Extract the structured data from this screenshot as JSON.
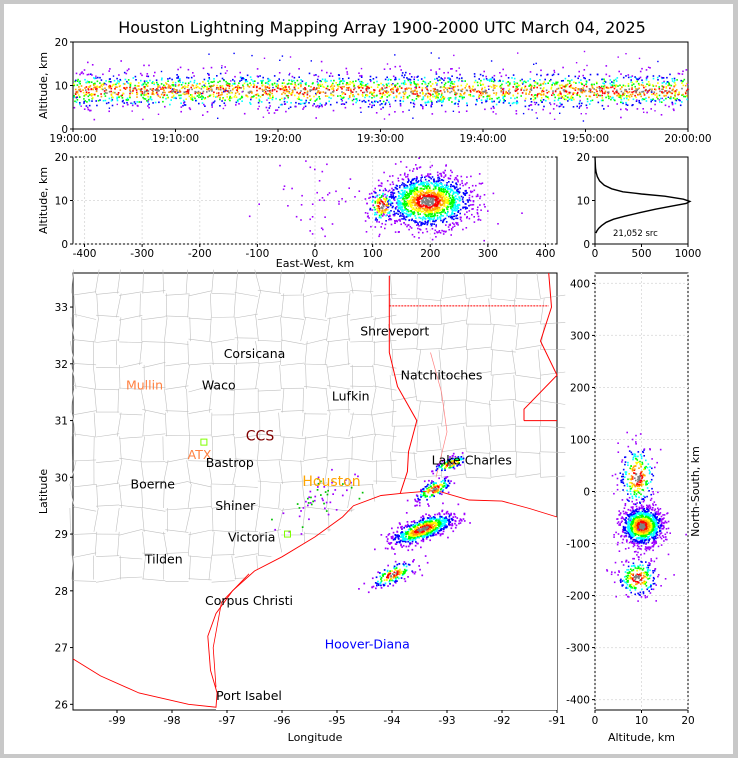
{
  "title": "Houston Lightning Mapping Array 1900-2000 UTC March 04, 2025",
  "colors": {
    "coast": "#ff0000",
    "county": "#c0c0c0",
    "state": "#ff0000",
    "grid": "#e0e0e0"
  },
  "chart_data": [
    {
      "type": "scatter",
      "name": "time-altitude",
      "ylabel": "Altitude, km",
      "xlim": [
        "19:00:00",
        "20:00:00"
      ],
      "xticks": [
        "19:00:00",
        "19:10:00",
        "19:20:00",
        "19:30:00",
        "19:40:00",
        "19:50:00",
        "20:00:00"
      ],
      "ylim": [
        0,
        20
      ],
      "yticks": [
        "0",
        "10",
        "20"
      ],
      "band_center_km": 9,
      "band_halfwidth_km": 2.5
    },
    {
      "type": "scatter",
      "name": "east-west-altitude",
      "xlabel": "East-West, km",
      "ylabel": "Altitude, km",
      "xlim": [
        -420,
        420
      ],
      "xticks": [
        "-400",
        "-300",
        "-200",
        "-100",
        "0",
        "100",
        "200",
        "300",
        "400"
      ],
      "ylim": [
        0,
        20
      ],
      "yticks": [
        "0",
        "10",
        "20"
      ],
      "clusters": [
        {
          "x": 195,
          "y": 10,
          "sx": 38,
          "sy": 3,
          "n": 1500
        },
        {
          "x": 115,
          "y": 9,
          "sx": 12,
          "sy": 2,
          "n": 150
        },
        {
          "x": 0,
          "y": 12,
          "sx": 45,
          "sy": 5,
          "n": 45
        }
      ]
    },
    {
      "type": "line",
      "name": "altitude-histogram",
      "source_count": "21,052 src",
      "xlim": [
        0,
        1000
      ],
      "xticks": [
        "0",
        "500",
        "1000"
      ],
      "ylim": [
        0,
        20
      ],
      "yticks": [
        "0",
        "10",
        "20"
      ],
      "x": [
        10,
        20,
        40,
        70,
        120,
        200,
        320,
        480,
        650,
        820,
        980,
        1020,
        950,
        750,
        500,
        300,
        180,
        100,
        50,
        25,
        12,
        5,
        3,
        0
      ],
      "y": [
        2.5,
        3,
        3.6,
        4.2,
        5,
        5.7,
        6.4,
        7.2,
        8.0,
        8.7,
        9.3,
        9.8,
        10.3,
        11,
        11.5,
        12,
        12.7,
        13.5,
        14.5,
        15.5,
        16.5,
        17.5,
        18.5,
        20
      ]
    },
    {
      "type": "scatter",
      "name": "plan-view",
      "xlabel": "Longitude",
      "ylabel": "Latitude",
      "xlim": [
        -99.8,
        -91
      ],
      "xticks": [
        "-99",
        "-98",
        "-97",
        "-96",
        "-95",
        "-94",
        "-93",
        "-92",
        "-91"
      ],
      "ylim": [
        25.9,
        33.6
      ],
      "yticks": [
        "26",
        "27",
        "28",
        "29",
        "30",
        "31",
        "32",
        "33"
      ],
      "stations": [
        {
          "label": "Mullin",
          "lon": -98.5,
          "lat": 31.55,
          "color": "#ff8040"
        },
        {
          "label": "Waco",
          "lon": -97.15,
          "lat": 31.55,
          "color": "#000000"
        },
        {
          "label": "Corsicana",
          "lon": -96.5,
          "lat": 32.1,
          "color": "#000000"
        },
        {
          "label": "Shreveport",
          "lon": -93.95,
          "lat": 32.5,
          "color": "#000000"
        },
        {
          "label": "Natchitoches",
          "lon": -93.1,
          "lat": 31.72,
          "color": "#000000"
        },
        {
          "label": "Lufkin",
          "lon": -94.75,
          "lat": 31.35,
          "color": "#000000"
        },
        {
          "label": "CCS",
          "lon": -96.4,
          "lat": 30.65,
          "color": "#800000"
        },
        {
          "label": "ATX",
          "lon": -97.5,
          "lat": 30.32,
          "color": "#ff8040"
        },
        {
          "label": "Bastrop",
          "lon": -96.95,
          "lat": 30.18,
          "color": "#000000"
        },
        {
          "label": "Lake Charles",
          "lon": -92.55,
          "lat": 30.23,
          "color": "#000000"
        },
        {
          "label": "Boerne",
          "lon": -98.35,
          "lat": 29.8,
          "color": "#000000"
        },
        {
          "label": "Houston",
          "lon": -95.1,
          "lat": 29.85,
          "color": "#ffa500"
        },
        {
          "label": "Shiner",
          "lon": -96.85,
          "lat": 29.42,
          "color": "#000000"
        },
        {
          "label": "Victoria",
          "lon": -96.55,
          "lat": 28.87,
          "color": "#000000"
        },
        {
          "label": "Tilden",
          "lon": -98.15,
          "lat": 28.48,
          "color": "#000000"
        },
        {
          "label": "Corpus Christi",
          "lon": -96.6,
          "lat": 27.75,
          "color": "#000000"
        },
        {
          "label": "Hoover-Diana",
          "lon": -94.45,
          "lat": 26.98,
          "color": "#0000ff"
        },
        {
          "label": "Port Isabel",
          "lon": -96.6,
          "lat": 26.08,
          "color": "#000000"
        }
      ],
      "clusters": [
        {
          "lon": -93.45,
          "lat": 29.1,
          "sx": 0.28,
          "sy": 0.12,
          "n": 700
        },
        {
          "lon": -93.25,
          "lat": 29.8,
          "sx": 0.15,
          "sy": 0.1,
          "n": 150
        },
        {
          "lon": -92.95,
          "lat": 30.25,
          "sx": 0.15,
          "sy": 0.06,
          "n": 120
        },
        {
          "lon": -94.0,
          "lat": 28.3,
          "sx": 0.2,
          "sy": 0.1,
          "n": 150
        },
        {
          "lon": -95.3,
          "lat": 29.6,
          "sx": 0.35,
          "sy": 0.25,
          "n": 60
        }
      ]
    },
    {
      "type": "scatter",
      "name": "altitude-north-south",
      "xlabel": "Altitude, km",
      "ylabel": "North-South, km",
      "xlim": [
        0,
        20
      ],
      "xticks": [
        "0",
        "10",
        "20"
      ],
      "ylim": [
        -420,
        420
      ],
      "yticks": [
        "-400",
        "-300",
        "-200",
        "-100",
        "0",
        "100",
        "200",
        "300",
        "400"
      ],
      "clusters": [
        {
          "x": 10,
          "y": -65,
          "sx": 2.2,
          "sy": 18,
          "n": 1200
        },
        {
          "x": 9,
          "y": 30,
          "sx": 2,
          "sy": 30,
          "n": 250
        },
        {
          "x": 9,
          "y": -165,
          "sx": 2.2,
          "sy": 18,
          "n": 250
        }
      ]
    }
  ]
}
